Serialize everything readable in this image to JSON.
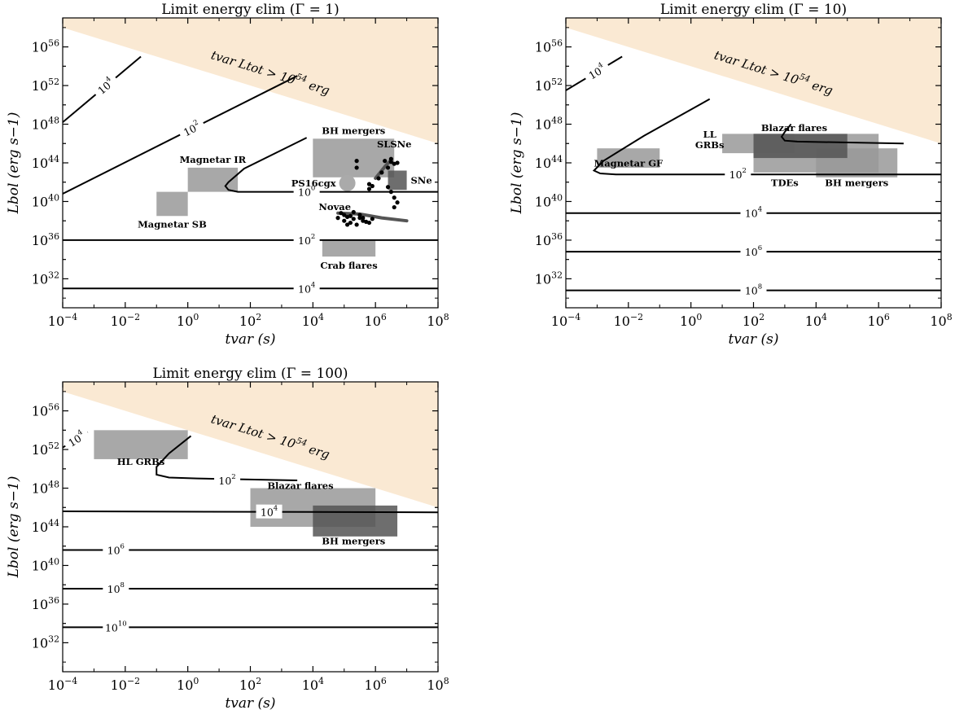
{
  "colors": {
    "excluded_region": "#fae9d3",
    "object_box": "#999999",
    "object_box_dark": "#555555",
    "contour": "#000000",
    "data_points": "#000000",
    "novae_track": "#555555"
  },
  "chart_data": [
    {
      "type": "contour",
      "title": "Limit energy ϵlim (Γ = 1)",
      "xlabel": "tvar (s)",
      "ylabel": "Lbol (erg s−1)",
      "xscale": "log",
      "yscale": "log",
      "xlim_log10": [
        -4,
        8
      ],
      "ylim_log10": [
        29,
        59
      ],
      "x_ticks": [
        {
          "exp": "-4"
        },
        {
          "exp": "-2"
        },
        {
          "exp": "0"
        },
        {
          "exp": "2"
        },
        {
          "exp": "4"
        },
        {
          "exp": "6"
        },
        {
          "exp": "8"
        }
      ],
      "y_ticks": [
        {
          "exp": "32"
        },
        {
          "exp": "36"
        },
        {
          "exp": "40"
        },
        {
          "exp": "44"
        },
        {
          "exp": "48"
        },
        {
          "exp": "52"
        },
        {
          "exp": "56"
        }
      ],
      "excluded_region": {
        "label_a": "tvar Ltot",
        "label_b": "> 10",
        "label_exp": "54",
        "label_c": "erg",
        "limit_log10_L_t": 54
      },
      "contours": [
        {
          "label": "10",
          "exp": "4",
          "points": [
            [
              -4,
              48.2
            ],
            [
              -1.5,
              55.0
            ]
          ]
        },
        {
          "label": "10",
          "exp": "2",
          "points": [
            [
              -4,
              40.8
            ],
            [
              3.5,
              53.0
            ]
          ]
        },
        {
          "label": "10",
          "exp": "0",
          "points": [
            [
              3.8,
              46.6
            ],
            [
              1.8,
              43.4
            ],
            [
              1.3,
              42.0
            ],
            [
              1.2,
              41.6
            ],
            [
              1.3,
              41.2
            ],
            [
              1.6,
              41.0
            ],
            [
              2.2,
              41.0
            ],
            [
              8,
              41.0
            ]
          ]
        },
        {
          "label": "10",
          "exp": "2",
          "points": [
            [
              -4,
              36.0
            ],
            [
              8,
              36.0
            ]
          ]
        },
        {
          "label": "10",
          "exp": "4",
          "points": [
            [
              -4,
              31.0
            ],
            [
              8,
              31.0
            ]
          ]
        }
      ],
      "boxes": [
        {
          "label": "Magnetar IR",
          "x_log10": [
            0,
            1.6
          ],
          "y_log10": [
            41,
            43.5
          ],
          "shade": "light"
        },
        {
          "label": "Magnetar SB",
          "x_log10": [
            -1,
            0
          ],
          "y_log10": [
            38.5,
            41
          ],
          "shade": "light"
        },
        {
          "label": "BH mergers",
          "x_log10": [
            4,
            6.6
          ],
          "y_log10": [
            42.5,
            46.5
          ],
          "shade": "light"
        },
        {
          "label": "SNe",
          "x_log10": [
            6.4,
            7
          ],
          "y_log10": [
            41.2,
            43.2
          ],
          "shade": "dark"
        },
        {
          "label": "Crab flares",
          "x_log10": [
            4.3,
            6
          ],
          "y_log10": [
            34.3,
            36
          ],
          "shade": "light"
        }
      ],
      "markers": [
        {
          "label": "PS16cgx",
          "x_log10": 5.1,
          "y_log10": 41.9
        }
      ],
      "object_labels": [
        {
          "text": "SLSNe",
          "x_log10": 6.6,
          "y_log10": 45.6
        },
        {
          "text": "Novae",
          "x_log10": 4.7,
          "y_log10": 39.1
        }
      ],
      "scatter": [
        [
          6.3,
          44.2
        ],
        [
          6.5,
          44.1
        ],
        [
          6.6,
          43.9
        ],
        [
          6.4,
          43.5
        ],
        [
          6.5,
          44.4
        ],
        [
          6.7,
          44.0
        ],
        [
          6.2,
          43.0
        ],
        [
          6.1,
          42.4
        ],
        [
          5.8,
          41.8
        ],
        [
          5.8,
          41.3
        ],
        [
          5.9,
          41.6
        ],
        [
          6.4,
          41.5
        ],
        [
          6.5,
          41.0
        ],
        [
          6.6,
          40.4
        ],
        [
          6.7,
          39.9
        ],
        [
          6.6,
          39.4
        ],
        [
          5.4,
          43.5
        ],
        [
          5.4,
          44.2
        ],
        [
          4.9,
          38.8
        ],
        [
          4.8,
          38.3
        ],
        [
          5.0,
          38.0
        ],
        [
          5.1,
          38.4
        ],
        [
          5.2,
          37.8
        ],
        [
          5.3,
          38.2
        ],
        [
          5.5,
          38.3
        ],
        [
          5.6,
          38.0
        ],
        [
          5.7,
          37.9
        ],
        [
          5.3,
          38.9
        ],
        [
          5.4,
          37.6
        ],
        [
          5.5,
          38.6
        ],
        [
          5.2,
          38.5
        ],
        [
          5.1,
          37.6
        ],
        [
          5.0,
          38.6
        ],
        [
          5.6,
          38.3
        ],
        [
          5.9,
          38.2
        ],
        [
          5.8,
          37.8
        ]
      ],
      "tracks": [
        {
          "name": "novae",
          "points": [
            [
              4.8,
              38.8
            ],
            [
              5.5,
              38.7
            ],
            [
              6.2,
              38.3
            ],
            [
              7.0,
              38.0
            ]
          ]
        },
        {
          "name": "slsne",
          "points": [
            [
              6.0,
              42.4
            ],
            [
              6.3,
              43.6
            ],
            [
              6.5,
              44.3
            ]
          ]
        }
      ]
    },
    {
      "type": "contour",
      "title": "Limit energy ϵlim (Γ = 10)",
      "xlabel": "tvar (s)",
      "ylabel": "Lbol (erg s−1)",
      "xscale": "log",
      "yscale": "log",
      "xlim_log10": [
        -4,
        8
      ],
      "ylim_log10": [
        29,
        59
      ],
      "x_ticks": [
        {
          "exp": "-4"
        },
        {
          "exp": "-2"
        },
        {
          "exp": "0"
        },
        {
          "exp": "2"
        },
        {
          "exp": "4"
        },
        {
          "exp": "6"
        },
        {
          "exp": "8"
        }
      ],
      "y_ticks": [
        {
          "exp": "32"
        },
        {
          "exp": "36"
        },
        {
          "exp": "40"
        },
        {
          "exp": "44"
        },
        {
          "exp": "48"
        },
        {
          "exp": "52"
        },
        {
          "exp": "56"
        }
      ],
      "excluded_region": {
        "label_a": "tvar Ltot",
        "label_b": "> 10",
        "label_exp": "54",
        "label_c": "erg",
        "limit_log10_L_t": 54
      },
      "contours": [
        {
          "label": "10",
          "exp": "4",
          "points": [
            [
              -4,
              51.5
            ],
            [
              -2.2,
              55.0
            ]
          ]
        },
        {
          "label": "10",
          "exp": "2",
          "points": [
            [
              0.6,
              50.6
            ],
            [
              -1.5,
              46.8
            ],
            [
              -2.8,
              44.2
            ],
            [
              -3.1,
              43.2
            ],
            [
              -2.9,
              42.9
            ],
            [
              -2.4,
              42.8
            ],
            [
              8,
              42.8
            ]
          ]
        },
        {
          "label": "10",
          "exp": "4",
          "points": [
            [
              -4,
              38.8
            ],
            [
              8,
              38.8
            ]
          ]
        },
        {
          "label": "10",
          "exp": "6",
          "points": [
            [
              -4,
              34.8
            ],
            [
              8,
              34.8
            ]
          ]
        },
        {
          "label": "10",
          "exp": "8",
          "points": [
            [
              -4,
              30.8
            ],
            [
              8,
              30.8
            ]
          ]
        }
      ],
      "extra_lines": [
        [
          [
            3.2,
            48.0
          ],
          [
            3.0,
            47.2
          ],
          [
            2.9,
            46.7
          ],
          [
            3.0,
            46.3
          ],
          [
            3.4,
            46.2
          ],
          [
            6.8,
            46.0
          ]
        ]
      ],
      "boxes": [
        {
          "label": "Magnetar GF",
          "x_log10": [
            -3,
            -1
          ],
          "y_log10": [
            43.5,
            45.5
          ],
          "shade": "light"
        },
        {
          "label": "LL GRBs",
          "x_log10": [
            1,
            3.3
          ],
          "y_log10": [
            45,
            47
          ],
          "shade": "light"
        },
        {
          "label": "TDEs",
          "x_log10": [
            2,
            6
          ],
          "y_log10": [
            43,
            47
          ],
          "shade": "light"
        },
        {
          "label": "BH mergers",
          "x_log10": [
            4,
            6.6
          ],
          "y_log10": [
            42.5,
            45.5
          ],
          "shade": "light"
        },
        {
          "label": "Blazar flares",
          "x_log10": [
            2,
            5
          ],
          "y_log10": [
            44.5,
            47
          ],
          "shade": "dark"
        }
      ],
      "object_labels": [
        {
          "text": "LL",
          "x_log10": 0.6,
          "y_log10": 46.6
        },
        {
          "text": "GRBs",
          "x_log10": 0.6,
          "y_log10": 45.5
        },
        {
          "text": "Blazar flares",
          "x_log10": 3.3,
          "y_log10": 47.3
        },
        {
          "text": "Magnetar GF",
          "x_log10": -2.0,
          "y_log10": 43.6
        },
        {
          "text": "TDEs",
          "x_log10": 3.0,
          "y_log10": 41.6
        },
        {
          "text": "BH mergers",
          "x_log10": 5.3,
          "y_log10": 41.6
        }
      ]
    },
    {
      "type": "contour",
      "title": "Limit energy ϵlim (Γ = 100)",
      "xlabel": "tvar (s)",
      "ylabel": "Lbol (erg s−1)",
      "xscale": "log",
      "yscale": "log",
      "xlim_log10": [
        -4,
        8
      ],
      "ylim_log10": [
        29,
        59
      ],
      "x_ticks": [
        {
          "exp": "-4"
        },
        {
          "exp": "-2"
        },
        {
          "exp": "0"
        },
        {
          "exp": "2"
        },
        {
          "exp": "4"
        },
        {
          "exp": "6"
        },
        {
          "exp": "8"
        }
      ],
      "y_ticks": [
        {
          "exp": "32"
        },
        {
          "exp": "36"
        },
        {
          "exp": "40"
        },
        {
          "exp": "44"
        },
        {
          "exp": "48"
        },
        {
          "exp": "52"
        },
        {
          "exp": "56"
        }
      ],
      "excluded_region": {
        "label_a": "tvar Ltot",
        "label_b": "> 10",
        "label_exp": "54",
        "label_c": "erg",
        "limit_log10_L_t": 54
      },
      "contours": [
        {
          "label": "10",
          "exp": "4",
          "points": [
            [
              -4,
              52.2
            ],
            [
              -3.2,
              53.8
            ]
          ]
        },
        {
          "label": "10",
          "exp": "2",
          "points": [
            [
              0.1,
              53.4
            ],
            [
              -0.6,
              51.6
            ],
            [
              -1.0,
              50.2
            ],
            [
              -1.0,
              49.4
            ],
            [
              -0.6,
              49.1
            ],
            [
              0.3,
              49.0
            ],
            [
              3.5,
              48.8
            ]
          ]
        },
        {
          "label": "10",
          "exp": "4",
          "points": [
            [
              -4,
              45.6
            ],
            [
              8,
              45.5
            ]
          ]
        },
        {
          "label": "10",
          "exp": "6",
          "points": [
            [
              -4,
              41.6
            ],
            [
              8,
              41.6
            ]
          ]
        },
        {
          "label": "10",
          "exp": "8",
          "points": [
            [
              -4,
              37.6
            ],
            [
              8,
              37.6
            ]
          ]
        },
        {
          "label": "10",
          "exp": "10",
          "points": [
            [
              -4,
              33.6
            ],
            [
              8,
              33.6
            ]
          ]
        }
      ],
      "boxes": [
        {
          "label": "HL GRBs",
          "x_log10": [
            -3,
            0
          ],
          "y_log10": [
            51,
            54
          ],
          "shade": "light"
        },
        {
          "label": "Blazar flares",
          "x_log10": [
            2,
            6
          ],
          "y_log10": [
            44,
            48
          ],
          "shade": "light"
        },
        {
          "label": "BH mergers",
          "x_log10": [
            4,
            6.7
          ],
          "y_log10": [
            43,
            46.2
          ],
          "shade": "dark"
        }
      ],
      "object_labels": [
        {
          "text": "HL GRBs",
          "x_log10": -1.5,
          "y_log10": 50.4
        },
        {
          "text": "Blazar flares",
          "x_log10": 3.6,
          "y_log10": 47.9
        },
        {
          "text": "BH mergers",
          "x_log10": 5.3,
          "y_log10": 42.2
        }
      ]
    }
  ]
}
